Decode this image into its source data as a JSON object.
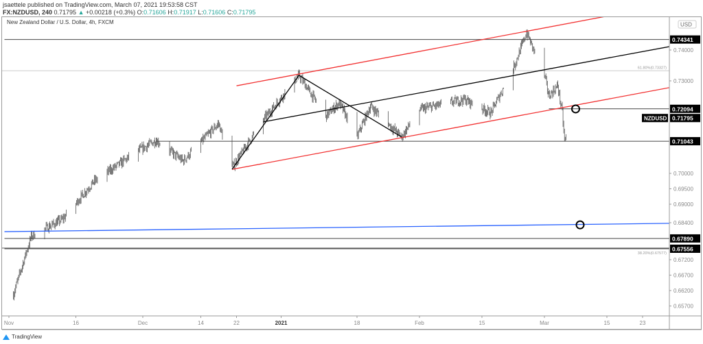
{
  "header": {
    "publisher": "jsaettele published on TradingView.com, March 07, 2021 19:53:58 CST",
    "symbol": "FX:NZDUSD, 240",
    "last": "0.71795",
    "change": "+0.00218 (+0.3%)",
    "o_label": "O:",
    "o": "0.71606",
    "h_label": "H:",
    "h": "0.71917",
    "l_label": "L:",
    "l": "0.71606",
    "c_label": "C:",
    "c": "0.71795"
  },
  "legend": "New Zealand Dollar / U.S. Dollar, 4h, FXCM",
  "currency_badge": "USD",
  "chart_data": {
    "type": "candlestick",
    "title": "New Zealand Dollar / U.S. Dollar, 4h, FXCM",
    "ylim": [
      0.6535,
      0.7545
    ],
    "y_ticks": [
      "0.74000",
      "0.73000",
      "0.70000",
      "0.69500",
      "0.69000",
      "0.68400",
      "0.67200",
      "0.66700",
      "0.66200",
      "0.65700"
    ],
    "x_ticks": [
      {
        "label": "Nov",
        "date": "2020-11-01"
      },
      {
        "label": "16",
        "date": "2020-11-16"
      },
      {
        "label": "Dec",
        "date": "2020-12-01"
      },
      {
        "label": "14",
        "date": "2020-12-14"
      },
      {
        "label": "22",
        "date": "2020-12-22"
      },
      {
        "label": "2021",
        "date": "2021-01-01"
      },
      {
        "label": "18",
        "date": "2021-01-18"
      },
      {
        "label": "Feb",
        "date": "2021-02-01"
      },
      {
        "label": "15",
        "date": "2021-02-15"
      },
      {
        "label": "Mar",
        "date": "2021-03-01"
      },
      {
        "label": "15",
        "date": "2021-03-15"
      },
      {
        "label": "23",
        "date": "2021-03-23"
      }
    ],
    "price_path": [
      [
        "2020-11-02",
        0.6607
      ],
      [
        "2020-11-06",
        0.6796
      ],
      [
        "2020-11-13",
        0.6851
      ],
      [
        "2020-11-20",
        0.6973
      ],
      [
        "2020-11-30",
        0.7073
      ],
      [
        "2020-12-04",
        0.7107
      ],
      [
        "2020-12-10",
        0.704
      ],
      [
        "2020-12-18",
        0.7162
      ],
      [
        "2020-12-21",
        0.7018
      ],
      [
        "2020-12-28",
        0.7173
      ],
      [
        "2021-01-05",
        0.7318
      ],
      [
        "2021-01-11",
        0.7184
      ],
      [
        "2021-01-14",
        0.7229
      ],
      [
        "2021-01-18",
        0.7118
      ],
      [
        "2021-01-21",
        0.7218
      ],
      [
        "2021-01-28",
        0.7118
      ],
      [
        "2021-02-01",
        0.7207
      ],
      [
        "2021-02-11",
        0.724
      ],
      [
        "2021-02-17",
        0.7196
      ],
      [
        "2021-02-22",
        0.734
      ],
      [
        "2021-02-25",
        0.7456
      ],
      [
        "2021-03-01",
        0.7318
      ],
      [
        "2021-03-02",
        0.7251
      ],
      [
        "2021-03-04",
        0.7284
      ],
      [
        "2021-03-05",
        0.7196
      ],
      [
        "2021-03-05T12:00",
        0.7104
      ],
      [
        "2021-03-07",
        0.71795
      ]
    ],
    "levels": [
      {
        "price": 0.74341,
        "label": "0.74341",
        "from": "2020-10-31"
      },
      {
        "price": 0.72094,
        "label": "0.72094",
        "from": "2021-03-02"
      },
      {
        "price": 0.71043,
        "label": "0.71043",
        "from": "2020-12-04"
      },
      {
        "price": 0.6789,
        "label": "0.67890",
        "from": "2020-10-31"
      },
      {
        "price": 0.67556,
        "label": "0.67556",
        "from": "2020-10-31"
      }
    ],
    "fib_levels": [
      {
        "price": 0.73327,
        "label": "61.80%(0.73327)"
      },
      {
        "price": 0.67577,
        "label": "38.20%(0.67577)"
      }
    ],
    "current": {
      "symbol": "NZDUSD",
      "price": 0.71795,
      "label": "0.71795"
    },
    "trendlines": [
      {
        "color": "#f23030",
        "points": [
          [
            "2020-12-21",
            0.7013
          ],
          [
            "2021-03-29",
            0.7278
          ]
        ]
      },
      {
        "color": "#f23030",
        "points": [
          [
            "2020-12-22",
            0.7284
          ],
          [
            "2021-03-18",
            0.7518
          ]
        ]
      },
      {
        "color": "#000000",
        "points": [
          [
            "2020-12-21",
            0.7013
          ],
          [
            "2021-01-05",
            0.7318
          ],
          [
            "2021-01-28",
            0.7118
          ]
        ]
      },
      {
        "color": "#000000",
        "points": [
          [
            "2020-12-28",
            0.7167
          ],
          [
            "2021-03-29",
            0.7411
          ]
        ]
      },
      {
        "color": "#2962ff",
        "points": [
          [
            "2020-10-31",
            0.6811
          ],
          [
            "2021-03-29",
            0.6838
          ]
        ]
      }
    ],
    "circles": [
      [
        "2021-03-08",
        0.7209
      ],
      [
        "2021-03-09",
        0.6833
      ]
    ]
  },
  "footer": {
    "brand": "TradingView"
  }
}
